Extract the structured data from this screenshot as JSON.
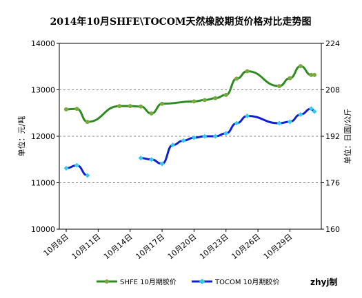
{
  "chart_data": {
    "type": "line",
    "title": "2014年10月SHFE\\TOCOM天然橡胶期货价格对比走势图",
    "ylabel_left": "单位：元/吨",
    "ylabel_right": "单位：日圆/公斤",
    "credit": "zhyj制",
    "x_ticks": [
      "10月8日",
      "10月11日",
      "10月14日",
      "10月17日",
      "10月20日",
      "10月23日",
      "10月26日",
      "10月29日"
    ],
    "x_tick_days": [
      8,
      11,
      14,
      17,
      20,
      23,
      26,
      29
    ],
    "xlim": [
      8,
      31
    ],
    "ylim_left": [
      10000,
      14000
    ],
    "yticks_left": [
      10000,
      11000,
      12000,
      13000,
      14000
    ],
    "ylim_right": [
      160,
      224
    ],
    "yticks_right": [
      160,
      176,
      192,
      208,
      224
    ],
    "grid": "horizontal dashed",
    "legend_position": "bottom",
    "colors": {
      "shfe": "#2e8b22",
      "shfe_marker": "#7aa840",
      "tocom": "#1020d0",
      "tocom_marker": "#33ccee"
    },
    "series": [
      {
        "name": "SHFE 10月期胶价",
        "axis": "left",
        "segments": [
          [
            [
              8,
              12580
            ],
            [
              9,
              12590
            ],
            [
              10,
              12310
            ],
            [
              13,
              12650
            ],
            [
              14,
              12650
            ],
            [
              15,
              12640
            ],
            [
              16,
              12490
            ],
            [
              17,
              12700
            ],
            [
              20,
              12750
            ],
            [
              21,
              12780
            ],
            [
              22,
              12820
            ],
            [
              23,
              12890
            ],
            [
              24,
              13240
            ],
            [
              25,
              13400
            ],
            [
              28,
              13080
            ],
            [
              29,
              13250
            ],
            [
              30,
              13510
            ],
            [
              31,
              13320
            ],
            [
              31.3,
              13320
            ]
          ]
        ]
      },
      {
        "name": "TOCOM 10月期胶价",
        "axis": "right",
        "segments": [
          [
            [
              8,
              181
            ],
            [
              9,
              182
            ],
            [
              10,
              178.5
            ]
          ],
          [
            [
              15,
              184.5
            ],
            [
              16,
              184
            ],
            [
              17,
              182.5
            ],
            [
              18,
              189
            ],
            [
              19,
              190.5
            ],
            [
              20,
              191.5
            ],
            [
              21,
              192
            ],
            [
              22,
              192
            ],
            [
              23,
              193
            ],
            [
              24,
              196.5
            ],
            [
              25,
              199
            ],
            [
              28,
              196.5
            ],
            [
              29,
              197
            ],
            [
              30,
              199.5
            ],
            [
              31,
              201.5
            ],
            [
              31.3,
              200.5
            ]
          ]
        ]
      }
    ]
  }
}
